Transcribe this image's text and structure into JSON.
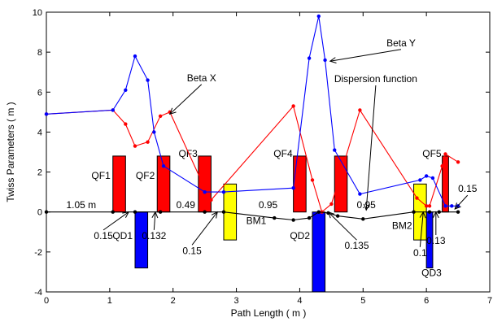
{
  "chart_data": {
    "type": "line",
    "xlabel": "Path Length ( m )",
    "ylabel": "Twiss Parameters ( m )",
    "xlim": [
      0,
      7
    ],
    "ylim": [
      -4,
      10
    ],
    "xticks": [
      "0",
      "1",
      "2",
      "3",
      "4",
      "5",
      "6",
      "7"
    ],
    "yticks": [
      "-4",
      "-2",
      "0",
      "2",
      "4",
      "6",
      "8",
      "10"
    ],
    "grid": false,
    "series": [
      {
        "name": "Beta X",
        "color": "#ff0000",
        "x": [
          0,
          1.05,
          1.25,
          1.4,
          1.6,
          1.8,
          1.95,
          2.5,
          2.6,
          3.9,
          4.2,
          4.35,
          4.5,
          4.6,
          4.95,
          5.85,
          6.0,
          6.05,
          6.25,
          6.3,
          6.5
        ],
        "y": [
          4.9,
          5.1,
          4.4,
          3.3,
          3.5,
          4.8,
          5.0,
          1.2,
          0.6,
          5.3,
          1.6,
          0.0,
          0.4,
          1.4,
          5.1,
          0.7,
          0.3,
          0.3,
          2.3,
          2.9,
          2.5
        ]
      },
      {
        "name": "Beta Y",
        "color": "#0000ff",
        "x": [
          0,
          1.05,
          1.25,
          1.4,
          1.6,
          1.7,
          1.85,
          2.5,
          2.8,
          3.9,
          4.15,
          4.3,
          4.4,
          4.55,
          4.95,
          5.9,
          6.0,
          6.1,
          6.3,
          6.4,
          6.5
        ],
        "y": [
          4.9,
          5.1,
          6.1,
          7.8,
          6.6,
          4.0,
          2.3,
          1.0,
          1.0,
          1.2,
          7.7,
          9.8,
          7.6,
          3.1,
          0.9,
          1.6,
          1.8,
          1.7,
          0.3,
          0.3,
          0.3
        ]
      },
      {
        "name": "Dispersion function",
        "color": "#000000",
        "x": [
          0,
          1.05,
          1.4,
          1.8,
          2.5,
          2.8,
          3.6,
          3.9,
          4.15,
          4.3,
          4.45,
          4.6,
          5.0,
          5.8,
          6.05,
          6.2,
          6.5
        ],
        "y": [
          0,
          0,
          0,
          0,
          0,
          0,
          -0.3,
          -0.4,
          -0.3,
          0.0,
          -0.05,
          -0.2,
          -0.35,
          0.0,
          0.0,
          0.0,
          0.0
        ]
      }
    ],
    "elements": [
      {
        "label": "QF1",
        "type": "focusing-quad",
        "color": "#ff0000",
        "x0": 1.05,
        "x1": 1.25,
        "y0": 0,
        "y1": 2.8
      },
      {
        "label": "QF2",
        "type": "focusing-quad",
        "color": "#ff0000",
        "x0": 1.75,
        "x1": 1.95,
        "y0": 0,
        "y1": 2.8
      },
      {
        "label": "QF3",
        "type": "focusing-quad",
        "color": "#ff0000",
        "x0": 2.4,
        "x1": 2.6,
        "y0": 0,
        "y1": 2.8
      },
      {
        "label": "QF4",
        "type": "focusing-quad",
        "color": "#ff0000",
        "x0": 3.9,
        "x1": 4.1,
        "y0": 0,
        "y1": 2.8
      },
      {
        "label": "",
        "type": "focusing-quad",
        "color": "#ff0000",
        "x0": 4.55,
        "x1": 4.75,
        "y0": 0,
        "y1": 2.8
      },
      {
        "label": "QF5",
        "type": "focusing-quad",
        "color": "#ff0000",
        "x0": 6.25,
        "x1": 6.35,
        "y0": 0,
        "y1": 2.8
      },
      {
        "label": "QD1",
        "type": "defocusing-quad",
        "color": "#0000ff",
        "x0": 1.4,
        "x1": 1.6,
        "y0": -2.8,
        "y1": 0
      },
      {
        "label": "QD2",
        "type": "defocusing-quad",
        "color": "#0000ff",
        "x0": 4.2,
        "x1": 4.4,
        "y0": -4.0,
        "y1": 0
      },
      {
        "label": "QD3",
        "type": "defocusing-quad",
        "color": "#0000ff",
        "x0": 6.0,
        "x1": 6.1,
        "y0": -2.8,
        "y1": 0
      },
      {
        "label": "BM1",
        "type": "bending-magnet",
        "color": "#ffff00",
        "x0": 2.8,
        "x1": 3.0,
        "y0": -1.4,
        "y1": 1.4
      },
      {
        "label": "BM2",
        "type": "bending-magnet",
        "color": "#ffff00",
        "x0": 5.8,
        "x1": 6.0,
        "y0": -1.4,
        "y1": 1.4
      }
    ],
    "drift_labels": [
      {
        "text": "1.05 m",
        "x": 0.55,
        "y": 0.15
      },
      {
        "text": "0.49",
        "x": 2.2,
        "y": 0.15
      },
      {
        "text": "0.95",
        "x": 3.5,
        "y": 0.15
      },
      {
        "text": "0.95",
        "x": 5.05,
        "y": 0.15
      }
    ],
    "annotations": [
      {
        "text": "Beta X",
        "x": 2.45,
        "y": 6.55,
        "ax": 1.95,
        "ay": 4.9
      },
      {
        "text": "Beta Y",
        "x": 5.6,
        "y": 8.3,
        "ax": 4.48,
        "ay": 7.55
      },
      {
        "text": "Dispersion function",
        "x": 5.2,
        "y": 6.5,
        "ax": 5.05,
        "ay": 0.1
      },
      {
        "text": "0.15",
        "x": 0.9,
        "y": -1.35,
        "ax": 1.3,
        "ay": 0.0
      },
      {
        "text": "0.132",
        "x": 1.7,
        "y": -1.35,
        "ax": 1.72,
        "ay": 0.0
      },
      {
        "text": "0.15",
        "x": 2.3,
        "y": -2.1,
        "ax": 2.7,
        "ay": 0.0
      },
      {
        "text": "0.135",
        "x": 4.9,
        "y": -1.85,
        "ax": 4.45,
        "ay": 0.0
      },
      {
        "text": "0.1",
        "x": 5.9,
        "y": -2.2,
        "ax": 5.95,
        "ay": 0.0
      },
      {
        "text": "0.13",
        "x": 6.15,
        "y": -1.6,
        "ax": 6.15,
        "ay": 0.0
      },
      {
        "text": "0.15",
        "x": 6.65,
        "y": 1.0,
        "ax": 6.45,
        "ay": 0.15
      }
    ]
  }
}
